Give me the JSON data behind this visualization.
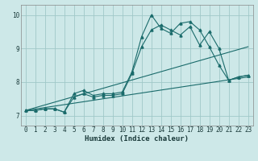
{
  "xlabel": "Humidex (Indice chaleur)",
  "xlim": [
    -0.5,
    23.5
  ],
  "ylim": [
    6.7,
    10.3
  ],
  "xticks": [
    0,
    1,
    2,
    3,
    4,
    5,
    6,
    7,
    8,
    9,
    10,
    11,
    12,
    13,
    14,
    15,
    16,
    17,
    18,
    19,
    20,
    21,
    22,
    23
  ],
  "yticks": [
    7,
    8,
    9,
    10
  ],
  "bg_color": "#cde8e8",
  "grid_color": "#a0c8c8",
  "line_color": "#1a6b6b",
  "line1_x": [
    0,
    1,
    2,
    3,
    4,
    5,
    6,
    7,
    8,
    9,
    10,
    11,
    12,
    13,
    14,
    15,
    16,
    17,
    18,
    19,
    20,
    21,
    22,
    23
  ],
  "line1_y": [
    7.15,
    7.15,
    7.2,
    7.2,
    7.1,
    7.65,
    7.75,
    7.6,
    7.65,
    7.65,
    7.7,
    8.3,
    9.35,
    10.0,
    9.6,
    9.45,
    9.75,
    9.8,
    9.55,
    9.05,
    8.5,
    8.05,
    8.15,
    8.2
  ],
  "line2_x": [
    0,
    1,
    2,
    3,
    4,
    5,
    6,
    7,
    8,
    9,
    10,
    11,
    12,
    13,
    14,
    15,
    16,
    17,
    18,
    19,
    20,
    21,
    22,
    23
  ],
  "line2_y": [
    7.15,
    7.15,
    7.2,
    7.2,
    7.1,
    7.55,
    7.65,
    7.55,
    7.6,
    7.6,
    7.65,
    8.25,
    9.05,
    9.55,
    9.7,
    9.55,
    9.4,
    9.65,
    9.1,
    9.5,
    9.0,
    8.05,
    8.15,
    8.2
  ],
  "line3_x": [
    0,
    23
  ],
  "line3_y": [
    7.15,
    9.05
  ],
  "line4_x": [
    0,
    23
  ],
  "line4_y": [
    7.15,
    8.15
  ]
}
